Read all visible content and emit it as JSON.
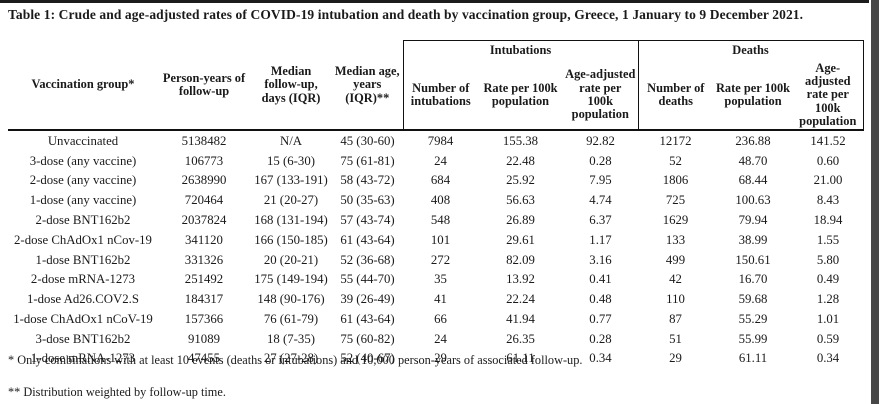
{
  "page": {
    "title": "Table 1: Crude and age-adjusted rates of COVID-19 intubation and death by vaccination group, Greece, 1 January to 9 December 2021."
  },
  "table": {
    "col_headers": {
      "vaccination_group": "Vaccination group*",
      "person_years": "Person-years of follow-up",
      "median_followup": "Median follow-up, days (IQR)",
      "median_age": "Median age, years (IQR)**",
      "group_intubations": "Intubations",
      "group_deaths": "Deaths",
      "n_intubations": "Number of intubations",
      "rate_intubations": "Rate per 100k population",
      "adj_rate_intubations": "Age-adjusted rate per 100k population",
      "n_deaths": "Number of deaths",
      "rate_deaths": "Rate per 100k population",
      "adj_rate_deaths": "Age-adjusted rate per 100k population"
    },
    "rows": [
      [
        "Unvaccinated",
        "5138482",
        "N/A",
        "45 (30-60)",
        "7984",
        "155.38",
        "92.82",
        "12172",
        "236.88",
        "141.52"
      ],
      [
        "3-dose (any vaccine)",
        "106773",
        "15 (6-30)",
        "75 (61-81)",
        "24",
        "22.48",
        "0.28",
        "52",
        "48.70",
        "0.60"
      ],
      [
        "2-dose (any vaccine)",
        "2638990",
        "167 (133-191)",
        "58 (43-72)",
        "684",
        "25.92",
        "7.95",
        "1806",
        "68.44",
        "21.00"
      ],
      [
        "1-dose (any vaccine)",
        "720464",
        "21 (20-27)",
        "50 (35-63)",
        "408",
        "56.63",
        "4.74",
        "725",
        "100.63",
        "8.43"
      ],
      [
        "2-dose BNT162b2",
        "2037824",
        "168 (131-194)",
        "57 (43-74)",
        "548",
        "26.89",
        "6.37",
        "1629",
        "79.94",
        "18.94"
      ],
      [
        "2-dose ChAdOx1 nCov-19",
        "341120",
        "166 (150-185)",
        "61 (43-64)",
        "101",
        "29.61",
        "1.17",
        "133",
        "38.99",
        "1.55"
      ],
      [
        "1-dose BNT162b2",
        "331326",
        "20 (20-21)",
        "52 (36-68)",
        "272",
        "82.09",
        "3.16",
        "499",
        "150.61",
        "5.80"
      ],
      [
        "2-dose mRNA-1273",
        "251492",
        "175 (149-194)",
        "55 (44-70)",
        "35",
        "13.92",
        "0.41",
        "42",
        "16.70",
        "0.49"
      ],
      [
        "1-dose Ad26.COV2.S",
        "184317",
        "148 (90-176)",
        "39 (26-49)",
        "41",
        "22.24",
        "0.48",
        "110",
        "59.68",
        "1.28"
      ],
      [
        "1-dose ChAdOx1 nCoV-19",
        "157366",
        "76 (61-79)",
        "61 (43-64)",
        "66",
        "41.94",
        "0.77",
        "87",
        "55.29",
        "1.01"
      ],
      [
        "3-dose BNT162b2",
        "91089",
        "18 (7-35)",
        "75 (60-82)",
        "24",
        "26.35",
        "0.28",
        "51",
        "55.99",
        "0.59"
      ],
      [
        "1-dose mRNA-1273",
        "47455",
        "27 (27-28)",
        "52 (40-67)",
        "29",
        "61.11",
        "0.34",
        "29",
        "61.11",
        "0.34"
      ]
    ]
  },
  "footnotes": {
    "asterisk": "* Only combinations with at least 10 events (deaths or intubations) and 10,000 person-years of associated follow-up.",
    "double_asterisk": "** Distribution weighted by follow-up time."
  },
  "colors": {
    "text": "#1a1a1a",
    "rule": "#111111",
    "page_edge": "#474747"
  }
}
